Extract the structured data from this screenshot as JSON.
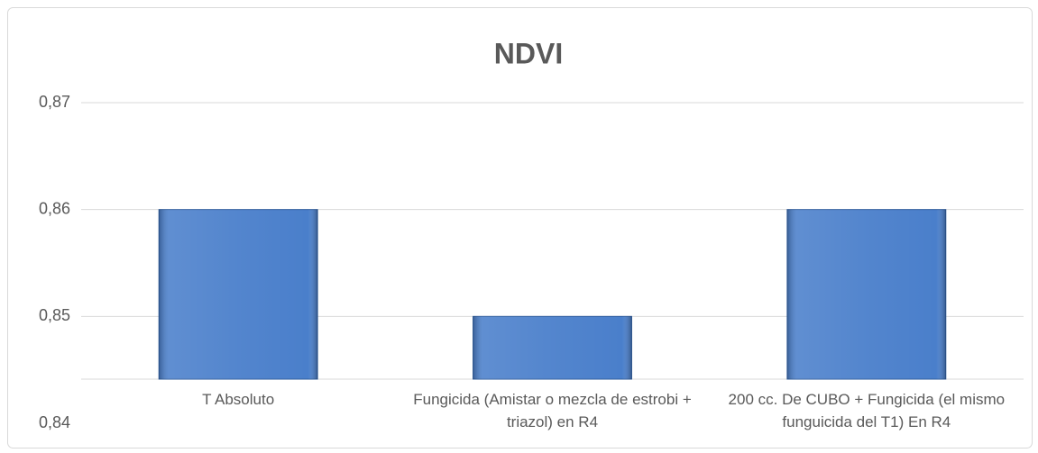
{
  "chart_data": {
    "type": "bar",
    "title": "NDVI",
    "categories": [
      "T Absoluto",
      "Fungicida (Amistar o mezcla de estrobi + triazol) en R4",
      "200 cc. De CUBO + Fungicida (el mismo funguicida del T1) En R4"
    ],
    "values": [
      0.86,
      0.85,
      0.86
    ],
    "color": "#4a7fcb",
    "ylim": [
      0.84,
      0.87
    ],
    "yticks": [
      {
        "value": 0.84,
        "label": "0,84"
      },
      {
        "value": 0.85,
        "label": "0,85"
      },
      {
        "value": 0.86,
        "label": "0,86"
      },
      {
        "value": 0.87,
        "label": "0,87"
      }
    ],
    "grid": true
  }
}
